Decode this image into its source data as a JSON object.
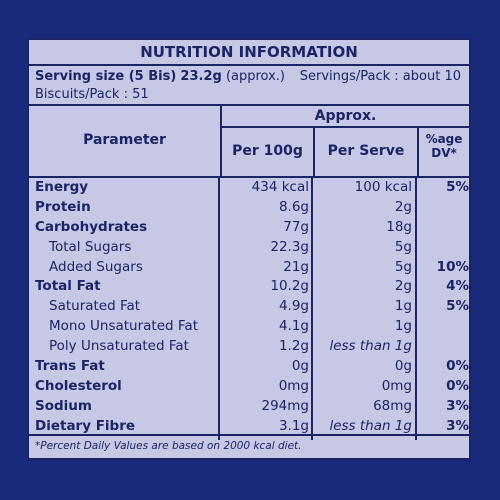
{
  "title": "NUTRITION INFORMATION",
  "serving": {
    "size_label": "Serving size (5 Bis)",
    "size_value": "23.2g",
    "size_note": "(approx.)",
    "servings_per_pack": "Servings/Pack : about 10",
    "biscuits_per_pack": "Biscuits/Pack : 51"
  },
  "header": {
    "approx": "Approx.",
    "parameter": "Parameter",
    "per_100g": "Per 100g",
    "per_serve": "Per Serve",
    "dv_line1": "%age",
    "dv_line2": "DV*"
  },
  "rows": [
    {
      "name": "Energy",
      "per100": "434 kcal",
      "serve": "100 kcal",
      "dv": "5%"
    },
    {
      "name": "Protein",
      "per100": "8.6g",
      "serve": "2g",
      "dv": ""
    },
    {
      "name": "Carbohydrates",
      "per100": "77g",
      "serve": "18g",
      "dv": ""
    },
    {
      "name": "Total Sugars",
      "per100": "22.3g",
      "serve": "5g",
      "dv": ""
    },
    {
      "name": "Added Sugars",
      "per100": "21g",
      "serve": "5g",
      "dv": "10%"
    },
    {
      "name": "Total Fat",
      "per100": "10.2g",
      "serve": "2g",
      "dv": "4%"
    },
    {
      "name": "Saturated Fat",
      "per100": "4.9g",
      "serve": "1g",
      "dv": "5%"
    },
    {
      "name": "Mono Unsaturated Fat",
      "per100": "4.1g",
      "serve": "1g",
      "dv": ""
    },
    {
      "name": "Poly Unsaturated Fat",
      "per100": "1.2g",
      "serve": "less than 1g",
      "dv": ""
    },
    {
      "name": "Trans Fat",
      "per100": "0g",
      "serve": "0g",
      "dv": "0%"
    },
    {
      "name": "Cholesterol",
      "per100": "0mg",
      "serve": "0mg",
      "dv": "0%"
    },
    {
      "name": "Sodium",
      "per100": "294mg",
      "serve": "68mg",
      "dv": "3%"
    },
    {
      "name": "Dietary Fibre",
      "per100": "3.1g",
      "serve": "less than 1g",
      "dv": "3%"
    }
  ],
  "footnote": "*Percent Daily Values are based on 2000 kcal diet.",
  "colors": {
    "background": "#1a2a7a",
    "panel": "#c6c8e6",
    "ink": "#1b2566"
  }
}
